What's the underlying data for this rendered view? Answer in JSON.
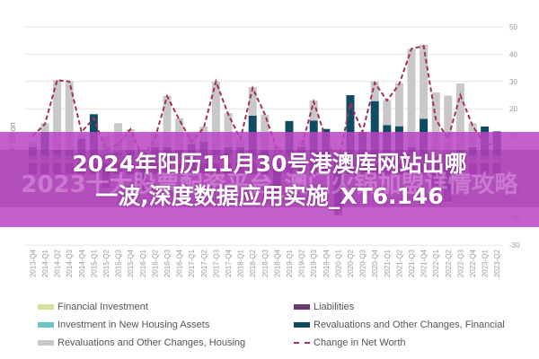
{
  "chart_data": {
    "type": "bar",
    "stacked": true,
    "title": "",
    "xlabel": "",
    "ylabel": "€ Billion",
    "ylim": [
      -30,
      50
    ],
    "yticks": [
      50,
      40,
      30,
      20,
      10,
      0,
      -10,
      -20,
      -30
    ],
    "y_axis_side": "right",
    "grid": true,
    "legend_position": "bottom",
    "categories": [
      "2013-Q4",
      "2014-Q1",
      "2014-Q2",
      "2014-Q3",
      "2014-Q4",
      "2015-Q1",
      "2015-Q2",
      "2015-Q3",
      "2015-Q4",
      "2016-Q1",
      "2016-Q2",
      "2016-Q3",
      "2016-Q4",
      "2017-Q1",
      "2017-Q2",
      "2017-Q3",
      "2017-Q4",
      "2018-Q1",
      "2018-Q2",
      "2018-Q3",
      "2018-Q4",
      "2019-Q1",
      "2019-Q2",
      "2019-Q3",
      "2019-Q4",
      "2020-Q1",
      "2020-Q2",
      "2020-Q3",
      "2020-Q4",
      "2021-Q1",
      "2021-Q2",
      "2021-Q3",
      "2021-Q4",
      "2022-Q1",
      "2022-Q2",
      "2022-Q3",
      "2022-Q4",
      "2023-Q1",
      "2023-Q2"
    ],
    "series": [
      {
        "name": "Financial Investment",
        "type": "bar",
        "color": "#d4e09b",
        "values": [
          1.5,
          1.5,
          1.5,
          1.5,
          1.5,
          1.5,
          1.5,
          1.5,
          1.5,
          1.5,
          1.5,
          1.5,
          1.5,
          1.5,
          1.5,
          1.5,
          1.5,
          1.5,
          1.5,
          1.5,
          1.5,
          1.5,
          1.5,
          1.5,
          1.5,
          1.5,
          1.5,
          1.5,
          1.5,
          1.5,
          1.5,
          1.5,
          1.5,
          1.5,
          1.5,
          1.5,
          1.5,
          1.5,
          1.5
        ]
      },
      {
        "name": "Investment in New Housing Assets",
        "type": "bar",
        "color": "#6cc5c4",
        "values": [
          1.5,
          1.5,
          1.5,
          1.5,
          1.5,
          1.5,
          1.5,
          1.5,
          1.5,
          1.5,
          1.5,
          1.5,
          1.5,
          1.5,
          1.5,
          1.5,
          1.5,
          1.5,
          1.5,
          1.5,
          1.5,
          1.5,
          1.5,
          1.5,
          1.5,
          1.5,
          1.5,
          1.5,
          1.5,
          1.5,
          1.5,
          1.5,
          1.5,
          1.5,
          1.5,
          1.5,
          1.5,
          1.5,
          1.5
        ]
      },
      {
        "name": "Revaluations and Other Changes, Financial",
        "type": "bar",
        "color": "#0f4c63",
        "values": [
          3,
          8.5,
          2,
          2,
          6,
          15,
          -5,
          1,
          2,
          -6,
          3,
          3,
          2,
          4,
          5,
          2,
          3,
          3,
          14.5,
          2,
          -8,
          12.5,
          3,
          12.7,
          9.6,
          -15,
          22,
          8.5,
          19.8,
          11,
          10.6,
          3,
          13.3,
          -5,
          -10,
          2,
          3,
          10.5,
          8.7
        ]
      },
      {
        "name": "Revaluations and Other Changes, Housing",
        "type": "bar",
        "color": "#c8c8c8",
        "values": [
          2,
          3.2,
          25.5,
          25,
          2,
          0,
          7,
          10.7,
          7.5,
          2,
          5,
          18.8,
          11.5,
          4,
          5.5,
          25,
          12.4,
          3,
          10.4,
          12.8,
          3,
          0,
          3,
          7.3,
          0,
          2,
          0,
          0,
          7.2,
          9.2,
          15.8,
          35.9,
          27.2,
          23,
          21.8,
          24.3,
          8.7,
          0,
          0
        ]
      },
      {
        "name": "Liabilities",
        "type": "bar",
        "color": "#6e3a75",
        "values": [
          -4,
          -4,
          -4,
          -4,
          -4,
          -4,
          -4,
          -4,
          -4,
          -4,
          -4,
          -4,
          -4,
          -4,
          -4,
          -4,
          -4,
          -4,
          -4,
          -4,
          -4,
          -4,
          -4,
          -4,
          -4,
          -4,
          -4,
          -4,
          -4,
          -4,
          -4,
          -4,
          -4,
          -4,
          -4,
          -4,
          -4,
          -4,
          -4
        ]
      },
      {
        "name": "Change in Net Worth",
        "type": "line",
        "style": "dashed",
        "color": "#a3305e",
        "values": [
          10,
          14.4,
          30.5,
          30,
          11.5,
          16.5,
          5,
          7,
          12.5,
          2,
          9,
          24.6,
          16,
          8,
          13,
          30,
          18,
          9,
          27.6,
          18,
          5,
          3,
          6,
          22.6,
          9,
          0,
          22,
          11.5,
          29.5,
          23,
          29,
          42,
          43,
          16,
          9,
          25,
          13.8,
          7,
          7
        ]
      }
    ]
  },
  "overlay": {
    "title_line1": "2024年阳历11月30号港澳库网站出哪",
    "title_line2": "一波,深度数据应用实施_XT6.146",
    "watermark": "2023十大股票配资平台_澳门火锅加盟详情攻略",
    "banner_color": "#ba46c4"
  },
  "legend": {
    "items": [
      {
        "label": "Financial Investment",
        "color": "#d4e09b"
      },
      {
        "label": "Liabilities",
        "color": "#6e3a75"
      },
      {
        "label": "Investment in New Housing Assets",
        "color": "#6cc5c4"
      },
      {
        "label": "Revaluations and Other Changes, Financial",
        "color": "#0f4c63"
      },
      {
        "label": "Revaluations and Other Changes, Housing",
        "color": "#c8c8c8"
      },
      {
        "label": "Change in Net Worth",
        "color": "#a3305e"
      }
    ]
  }
}
